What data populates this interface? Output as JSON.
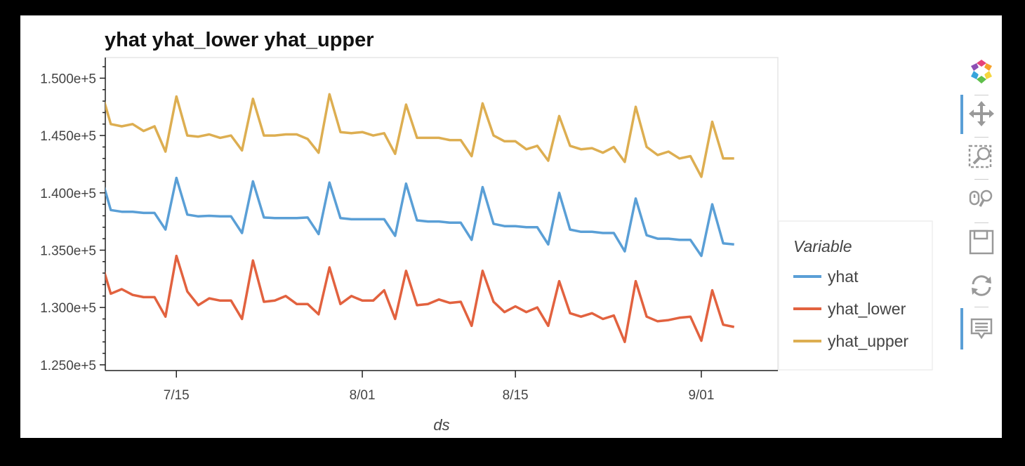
{
  "chart_data": {
    "type": "line",
    "title": "yhat yhat_lower yhat_upper",
    "xlabel": "ds",
    "ylabel": "",
    "ylim": [
      124500,
      151800
    ],
    "x_range_days": [
      -5.5,
      56
    ],
    "x_ticks": [
      {
        "label": "7/15",
        "day": 1
      },
      {
        "label": "8/01",
        "day": 18
      },
      {
        "label": "8/15",
        "day": 32
      },
      {
        "label": "9/01",
        "day": 49
      }
    ],
    "y_ticks": [
      {
        "label": "1.250e+5",
        "value": 125000
      },
      {
        "label": "1.300e+5",
        "value": 130000
      },
      {
        "label": "1.350e+5",
        "value": 135000
      },
      {
        "label": "1.400e+5",
        "value": 140000
      },
      {
        "label": "1.450e+5",
        "value": 145000
      },
      {
        "label": "1.500e+5",
        "value": 150000
      }
    ],
    "x_start_day": -7,
    "legend": {
      "title": "Variable",
      "placement": "right"
    },
    "series": [
      {
        "name": "yhat",
        "color": "#5a9fd6",
        "values": [
          135800,
          141800,
          138500,
          138350,
          138350,
          138250,
          138250,
          136800,
          141300,
          138100,
          137950,
          138000,
          137950,
          137950,
          136500,
          141000,
          137850,
          137800,
          137800,
          137800,
          137850,
          136400,
          140900,
          137800,
          137700,
          137700,
          137700,
          137700,
          136250,
          140800,
          137600,
          137500,
          137500,
          137400,
          137400,
          135900,
          140500,
          137300,
          137100,
          137100,
          137000,
          137000,
          135500,
          140000,
          136800,
          136600,
          136600,
          136500,
          136500,
          134900,
          139500,
          136300,
          136000,
          136000,
          135900,
          135900,
          134500,
          139000,
          135600,
          135500
        ]
      },
      {
        "name": "yhat_lower",
        "color": "#e2623f",
        "values": [
          129800,
          134400,
          131200,
          131600,
          131100,
          130900,
          130900,
          129200,
          134500,
          131400,
          130200,
          130800,
          130600,
          130600,
          129000,
          134100,
          130500,
          130600,
          131000,
          130300,
          130300,
          129400,
          133500,
          130300,
          131000,
          130600,
          130600,
          131500,
          129000,
          133200,
          130200,
          130300,
          130700,
          130400,
          130500,
          128400,
          133200,
          130500,
          129600,
          130100,
          129600,
          130000,
          128400,
          132300,
          129500,
          129200,
          129500,
          129000,
          129300,
          127000,
          132300,
          129200,
          128800,
          128900,
          129100,
          129200,
          127100,
          131500,
          128500,
          128300
        ]
      },
      {
        "name": "yhat_upper",
        "color": "#ddae51",
        "values": [
          143500,
          149300,
          146000,
          145800,
          146000,
          145400,
          145800,
          143600,
          148400,
          145000,
          144900,
          145100,
          144800,
          145000,
          143700,
          148200,
          145000,
          145000,
          145100,
          145100,
          144700,
          143500,
          148600,
          145300,
          145200,
          145300,
          145000,
          145200,
          143400,
          147700,
          144800,
          144800,
          144800,
          144600,
          144600,
          143200,
          147800,
          145000,
          144500,
          144500,
          143800,
          144100,
          142800,
          146700,
          144100,
          143800,
          143900,
          143500,
          144000,
          142700,
          147500,
          144000,
          143300,
          143600,
          143000,
          143200,
          141400,
          146200,
          143000,
          143000
        ]
      }
    ]
  },
  "toolbar": {
    "logo": "bokeh-logo-icon",
    "tools": [
      "pan-icon",
      "box-zoom-icon",
      "wheel-zoom-icon",
      "save-icon",
      "reset-icon",
      "hover-icon"
    ]
  }
}
